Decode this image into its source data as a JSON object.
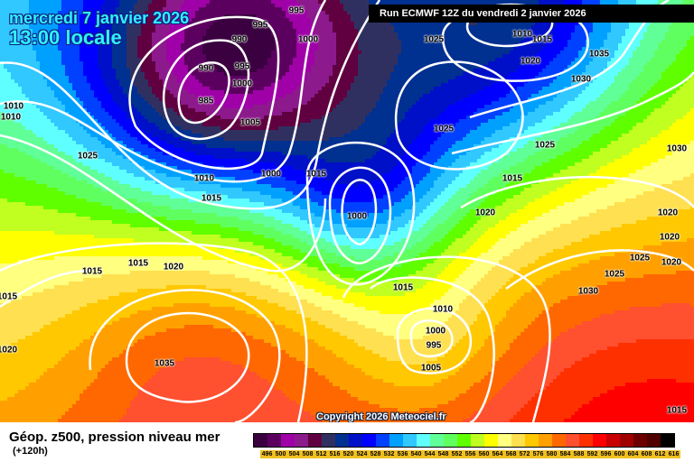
{
  "header": {
    "date": "mercredi 7 janvier 2026",
    "hour": "13:00 locale",
    "run": "Run ECMWF 12Z du vendredi 2 janvier 2026",
    "copyright": "Copyright 2026 Meteociel.fr"
  },
  "footer": {
    "title": "Géop. z500, pression niveau mer",
    "lead_time": "(+120h)"
  },
  "legend": {
    "unit_values": [
      "496",
      "500",
      "504",
      "508",
      "512",
      "516",
      "520",
      "524",
      "528",
      "532",
      "536",
      "540",
      "544",
      "548",
      "552",
      "556",
      "560",
      "564",
      "568",
      "572",
      "576",
      "580",
      "584",
      "588",
      "592",
      "596",
      "600",
      "604",
      "608",
      "612",
      "616"
    ],
    "colors": [
      "#3a0040",
      "#5c0060",
      "#a000a8",
      "#8c1a8c",
      "#600040",
      "#303060",
      "#003090",
      "#0010c8",
      "#0000ff",
      "#0040ff",
      "#00a0ff",
      "#30c8ff",
      "#60ffff",
      "#60ff98",
      "#60ff60",
      "#60ff00",
      "#c0ff20",
      "#ffff00",
      "#ffff80",
      "#ffe050",
      "#ffc800",
      "#ffa000",
      "#ff6800",
      "#ff5030",
      "#ff3000",
      "#ff0000",
      "#c80000",
      "#a00000",
      "#6c0000",
      "#500000",
      "#000000"
    ]
  },
  "isobar_labels": [
    "995",
    "990",
    "995",
    "1000",
    "990",
    "995",
    "1000",
    "985",
    "1005",
    "1010",
    "1010",
    "1025",
    "1010",
    "1015",
    "1000",
    "1015",
    "1000",
    "1025",
    "1010",
    "1015",
    "1020",
    "1035",
    "1030",
    "1025",
    "1025",
    "1030",
    "1015",
    "1020",
    "1020",
    "1020",
    "1025",
    "1020",
    "1025",
    "1030",
    "1015",
    "1015",
    "1020",
    "1015",
    "1015",
    "1010",
    "1000",
    "995",
    "1005",
    "1035",
    "1020",
    "1015"
  ]
}
